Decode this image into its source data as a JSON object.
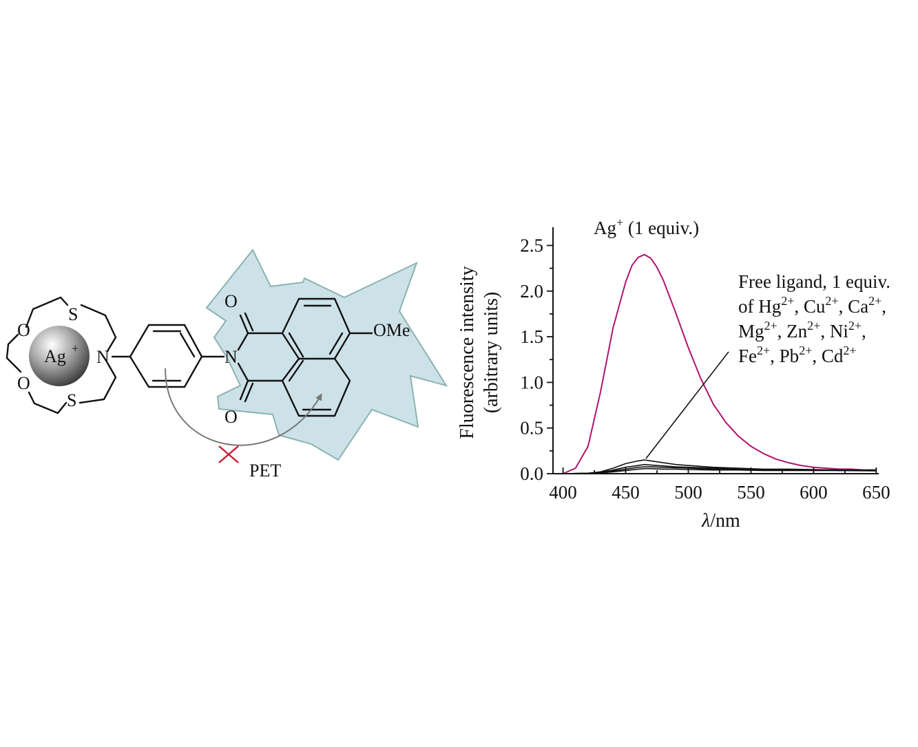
{
  "scheme": {
    "atoms": {
      "ion_symbol": "Ag",
      "ion_charge": "+",
      "n_crown": "N",
      "n_imide": "N",
      "o_crown_top": "O",
      "o_crown_bottom": "O",
      "s_top": "S",
      "s_bottom": "S",
      "o_carbonyl_top": "O",
      "o_carbonyl_bottom": "O",
      "methoxy": "OMe"
    },
    "pet_label": "PET",
    "colors": {
      "burst_fill": "#cde1e8",
      "burst_stroke": "#8ab3b0",
      "blocked_x": "#c8102e",
      "arrow": "#777777"
    }
  },
  "chart": {
    "title_main": "Ag",
    "title_sup": "+",
    "title_rest": " (1 equiv.)",
    "ylabel_line1": "Fluorescence intensity",
    "ylabel_line2": "(arbitrary units)",
    "xlabel_italic": "λ",
    "xlabel_rest": "/nm",
    "legend_lines": [
      [
        {
          "t": "Free ligand, 1 equiv."
        }
      ],
      [
        {
          "t": "of Hg"
        },
        {
          "s": "2+"
        },
        {
          "t": ", Cu"
        },
        {
          "s": "2+"
        },
        {
          "t": ", Ca"
        },
        {
          "s": "2+"
        },
        {
          "t": ","
        }
      ],
      [
        {
          "t": "Mg"
        },
        {
          "s": "2+"
        },
        {
          "t": ", Zn"
        },
        {
          "s": "2+"
        },
        {
          "t": ", Ni"
        },
        {
          "s": "2+"
        },
        {
          "t": ","
        }
      ],
      [
        {
          "t": "Fe"
        },
        {
          "s": "2+"
        },
        {
          "t": ", Pb"
        },
        {
          "s": "2+"
        },
        {
          "t": ", Cd"
        },
        {
          "s": "2+"
        }
      ]
    ],
    "colors": {
      "ag": "#b0136e",
      "others": "#111111"
    }
  },
  "chart_data": {
    "type": "line",
    "title": "Ag+ (1 equiv.)",
    "xlabel": "λ/nm",
    "ylabel": "Fluorescence intensity (arbitrary units)",
    "xlim": [
      392,
      652
    ],
    "ylim": [
      0,
      2.7
    ],
    "xticks": [
      "400",
      "450",
      "500",
      "550",
      "600",
      "650"
    ],
    "yticks": [
      "0.0",
      "0.5",
      "1.0",
      "1.5",
      "2.0",
      "2.5"
    ],
    "series": [
      {
        "name": "Ag+ (1 equiv.)",
        "x": [
          400,
          410,
          420,
          430,
          440,
          450,
          455,
          460,
          465,
          470,
          475,
          480,
          490,
          500,
          510,
          520,
          530,
          540,
          550,
          560,
          570,
          580,
          590,
          600,
          610,
          620,
          630,
          640,
          650
        ],
        "y": [
          0.0,
          0.06,
          0.3,
          0.9,
          1.6,
          2.1,
          2.28,
          2.37,
          2.4,
          2.36,
          2.26,
          2.12,
          1.76,
          1.38,
          1.04,
          0.76,
          0.56,
          0.41,
          0.3,
          0.22,
          0.16,
          0.12,
          0.09,
          0.07,
          0.06,
          0.05,
          0.05,
          0.04,
          0.04
        ]
      },
      {
        "name": "Free ligand, 1 equiv. of Hg2+, Cu2+, Ca2+, Mg2+, Zn2+, Ni2+, Fe2+, Pb2+, Cd2+",
        "x": [
          400,
          420,
          430,
          440,
          450,
          460,
          465,
          470,
          480,
          490,
          500,
          520,
          540,
          560,
          580,
          600,
          620,
          650
        ],
        "y": [
          0.0,
          0.005,
          0.02,
          0.06,
          0.11,
          0.14,
          0.15,
          0.14,
          0.12,
          0.1,
          0.09,
          0.07,
          0.06,
          0.05,
          0.05,
          0.045,
          0.04,
          0.04
        ]
      },
      {
        "x": [
          400,
          420,
          430,
          440,
          450,
          460,
          465,
          470,
          480,
          490,
          500,
          520,
          540,
          560,
          580,
          600,
          620,
          650
        ],
        "y": [
          0.0,
          0.005,
          0.015,
          0.04,
          0.07,
          0.09,
          0.1,
          0.095,
          0.085,
          0.075,
          0.07,
          0.06,
          0.05,
          0.045,
          0.045,
          0.04,
          0.04,
          0.04
        ]
      },
      {
        "x": [
          400,
          420,
          430,
          440,
          450,
          460,
          465,
          470,
          480,
          490,
          500,
          520,
          540,
          560,
          580,
          600,
          620,
          650
        ],
        "y": [
          0.0,
          0.004,
          0.01,
          0.03,
          0.05,
          0.07,
          0.075,
          0.075,
          0.07,
          0.065,
          0.06,
          0.05,
          0.045,
          0.04,
          0.04,
          0.04,
          0.035,
          0.035
        ]
      },
      {
        "x": [
          400,
          420,
          430,
          440,
          450,
          460,
          465,
          470,
          480,
          490,
          500,
          520,
          540,
          560,
          580,
          600,
          620,
          650
        ],
        "y": [
          0.0,
          0.003,
          0.008,
          0.02,
          0.035,
          0.05,
          0.055,
          0.055,
          0.05,
          0.05,
          0.045,
          0.04,
          0.04,
          0.035,
          0.035,
          0.035,
          0.035,
          0.03
        ]
      }
    ],
    "grid": false,
    "legend": "annotation"
  }
}
